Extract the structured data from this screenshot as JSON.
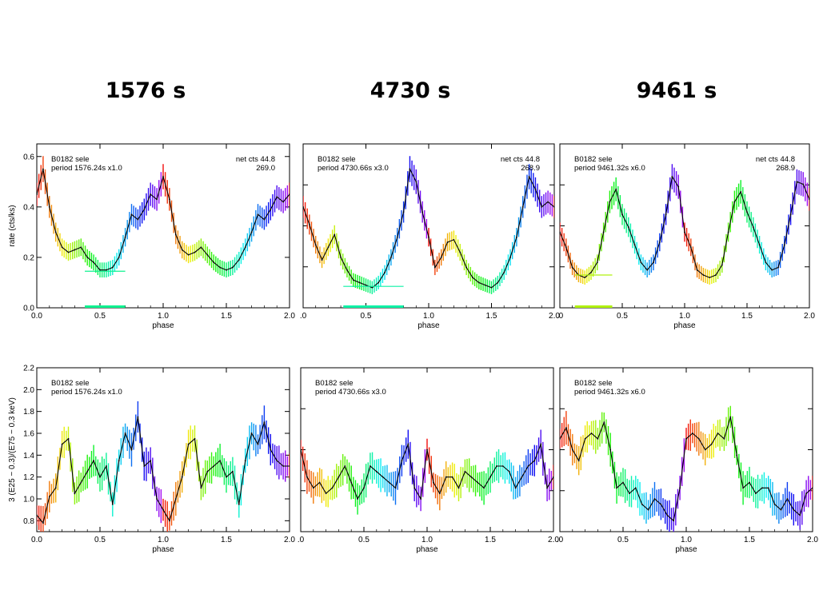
{
  "column_titles": [
    "1576 s",
    "4730 s",
    "9461 s"
  ],
  "chart_data": [
    {
      "type": "line",
      "panel": "top-left",
      "xlabel": "phase",
      "ylabel": "rate (cts/ks)",
      "xlim": [
        0,
        2
      ],
      "ylim": [
        0,
        0.65
      ],
      "xticks": [
        "0.0",
        "0.5",
        "1.0",
        "1.5",
        "2.0"
      ],
      "yticks": [
        "0.0",
        "0.2",
        "0.4",
        "0.6"
      ],
      "annotation_left": [
        "B0182  sele",
        "period  1576.24s  x1.0"
      ],
      "annotation_right": [
        "net  cts  44.8",
        "269.0"
      ],
      "x": [
        0.0,
        0.05,
        0.1,
        0.15,
        0.2,
        0.25,
        0.3,
        0.35,
        0.4,
        0.45,
        0.5,
        0.55,
        0.6,
        0.65,
        0.7,
        0.75,
        0.8,
        0.85,
        0.9,
        0.95,
        1.0,
        1.05,
        1.1,
        1.15,
        1.2,
        1.25,
        1.3,
        1.35,
        1.4,
        1.45,
        1.5,
        1.55,
        1.6,
        1.65,
        1.7,
        1.75,
        1.8,
        1.85,
        1.9,
        1.95,
        2.0
      ],
      "values": [
        0.45,
        0.55,
        0.4,
        0.3,
        0.24,
        0.22,
        0.23,
        0.24,
        0.2,
        0.18,
        0.15,
        0.15,
        0.16,
        0.2,
        0.28,
        0.37,
        0.35,
        0.39,
        0.45,
        0.43,
        0.52,
        0.43,
        0.29,
        0.23,
        0.21,
        0.22,
        0.24,
        0.21,
        0.18,
        0.16,
        0.15,
        0.16,
        0.19,
        0.24,
        0.3,
        0.37,
        0.35,
        0.39,
        0.44,
        0.42,
        0.45
      ],
      "horizontal_bar": {
        "x": [
          0.38,
          0.7
        ],
        "y": 0.145
      }
    },
    {
      "type": "line",
      "panel": "top-middle",
      "xlabel": "phase",
      "xlim": [
        0,
        2
      ],
      "ylim": [
        0,
        0.65
      ],
      "xticks": [
        ".0",
        "0.5",
        "1.0",
        "1.5",
        "2.0"
      ],
      "annotation_left": [
        "B0182  sele",
        "period  4730.66s  x3.0"
      ],
      "annotation_right": [
        "net  cts  44.8",
        "268.9"
      ],
      "x": [
        0.0,
        0.05,
        0.1,
        0.15,
        0.2,
        0.25,
        0.3,
        0.35,
        0.4,
        0.45,
        0.5,
        0.55,
        0.6,
        0.65,
        0.7,
        0.75,
        0.8,
        0.85,
        0.9,
        0.95,
        1.0,
        1.05,
        1.1,
        1.15,
        1.2,
        1.25,
        1.3,
        1.35,
        1.4,
        1.45,
        1.5,
        1.55,
        1.6,
        1.65,
        1.7,
        1.75,
        1.8,
        1.85,
        1.9,
        1.95,
        2.0
      ],
      "values": [
        0.4,
        0.33,
        0.25,
        0.19,
        0.24,
        0.29,
        0.2,
        0.15,
        0.11,
        0.1,
        0.09,
        0.08,
        0.1,
        0.14,
        0.2,
        0.28,
        0.38,
        0.55,
        0.5,
        0.38,
        0.28,
        0.16,
        0.2,
        0.26,
        0.27,
        0.22,
        0.16,
        0.12,
        0.1,
        0.09,
        0.08,
        0.1,
        0.14,
        0.2,
        0.28,
        0.4,
        0.52,
        0.47,
        0.4,
        0.42,
        0.4
      ],
      "horizontal_bar": {
        "x": [
          0.32,
          0.8
        ],
        "y": 0.085
      }
    },
    {
      "type": "line",
      "panel": "top-right",
      "xlabel": "phase",
      "xlim": [
        0,
        2
      ],
      "ylim": [
        0,
        0.65
      ],
      "xticks": [
        ".0",
        "0.5",
        "1.0",
        "1.5",
        "2.0"
      ],
      "annotation_left": [
        "B0182  sele",
        "period  9461.32s  x6.0"
      ],
      "annotation_right": [
        "net  cts  44.8",
        "268.9"
      ],
      "x": [
        0.0,
        0.05,
        0.1,
        0.15,
        0.2,
        0.25,
        0.3,
        0.35,
        0.4,
        0.45,
        0.5,
        0.55,
        0.6,
        0.65,
        0.7,
        0.75,
        0.8,
        0.85,
        0.9,
        0.95,
        1.0,
        1.05,
        1.1,
        1.15,
        1.2,
        1.25,
        1.3,
        1.35,
        1.4,
        1.45,
        1.5,
        1.55,
        1.6,
        1.65,
        1.7,
        1.75,
        1.8,
        1.85,
        1.9,
        1.95,
        2.0
      ],
      "values": [
        0.3,
        0.24,
        0.16,
        0.13,
        0.12,
        0.14,
        0.18,
        0.3,
        0.42,
        0.47,
        0.37,
        0.32,
        0.25,
        0.18,
        0.15,
        0.18,
        0.26,
        0.37,
        0.52,
        0.48,
        0.3,
        0.24,
        0.15,
        0.13,
        0.12,
        0.13,
        0.17,
        0.3,
        0.42,
        0.46,
        0.38,
        0.32,
        0.25,
        0.18,
        0.15,
        0.16,
        0.25,
        0.37,
        0.5,
        0.49,
        0.43
      ],
      "horizontal_bar": {
        "x": [
          0.12,
          0.42
        ],
        "y": 0.13
      }
    },
    {
      "type": "line",
      "panel": "bottom-left",
      "xlabel": "phase",
      "ylabel": "3 (E25 − 0.3)/(E75 − 0.3 keV)",
      "xlim": [
        0,
        2
      ],
      "ylim": [
        0.7,
        2.2
      ],
      "xticks": [
        "0.0",
        "0.5",
        "1.0",
        "1.5",
        "2.0"
      ],
      "yticks": [
        "0.8",
        "1.0",
        "1.2",
        "1.4",
        "1.6",
        "1.8",
        "2.0",
        "2.2"
      ],
      "annotation_left": [
        "B0182  sele",
        "period  1576.24s  x1.0"
      ],
      "x": [
        0.0,
        0.05,
        0.1,
        0.15,
        0.2,
        0.25,
        0.3,
        0.35,
        0.4,
        0.45,
        0.5,
        0.55,
        0.6,
        0.65,
        0.7,
        0.75,
        0.8,
        0.85,
        0.9,
        0.95,
        1.0,
        1.05,
        1.1,
        1.15,
        1.2,
        1.25,
        1.3,
        1.35,
        1.4,
        1.45,
        1.5,
        1.55,
        1.6,
        1.65,
        1.7,
        1.75,
        1.8,
        1.85,
        1.9,
        1.95,
        2.0
      ],
      "values": [
        0.85,
        0.78,
        1.02,
        1.1,
        1.5,
        1.55,
        1.05,
        1.15,
        1.25,
        1.35,
        1.2,
        1.3,
        0.95,
        1.35,
        1.6,
        1.45,
        1.75,
        1.3,
        1.35,
        1.0,
        0.9,
        0.8,
        1.0,
        1.2,
        1.5,
        1.55,
        1.1,
        1.25,
        1.3,
        1.35,
        1.2,
        1.25,
        0.95,
        1.35,
        1.6,
        1.5,
        1.7,
        1.45,
        1.35,
        1.3,
        1.3
      ]
    },
    {
      "type": "line",
      "panel": "bottom-middle",
      "xlabel": "phase",
      "xlim": [
        0,
        2
      ],
      "ylim": [
        0.7,
        2.2
      ],
      "xticks": [
        ".0",
        "0.5",
        "1.0",
        "1.5",
        "2.0"
      ],
      "annotation_left": [
        "B0182  sele",
        "period  4730.66s  x3.0"
      ],
      "x": [
        0.0,
        0.05,
        0.1,
        0.15,
        0.2,
        0.25,
        0.3,
        0.35,
        0.4,
        0.45,
        0.5,
        0.55,
        0.6,
        0.65,
        0.7,
        0.75,
        0.8,
        0.85,
        0.9,
        0.95,
        1.0,
        1.05,
        1.1,
        1.15,
        1.2,
        1.25,
        1.3,
        1.35,
        1.4,
        1.45,
        1.5,
        1.55,
        1.6,
        1.65,
        1.7,
        1.75,
        1.8,
        1.85,
        1.9,
        1.95,
        2.0
      ],
      "values": [
        1.45,
        1.2,
        1.1,
        1.15,
        1.05,
        1.1,
        1.2,
        1.3,
        1.15,
        1.0,
        1.1,
        1.3,
        1.25,
        1.2,
        1.15,
        1.1,
        1.35,
        1.5,
        1.1,
        1.0,
        1.45,
        1.15,
        1.05,
        1.2,
        1.2,
        1.1,
        1.25,
        1.2,
        1.15,
        1.1,
        1.2,
        1.3,
        1.3,
        1.25,
        1.1,
        1.2,
        1.3,
        1.35,
        1.5,
        1.1,
        1.2
      ]
    },
    {
      "type": "line",
      "panel": "bottom-right",
      "xlabel": "phase",
      "xlim": [
        0,
        2
      ],
      "ylim": [
        0.7,
        2.2
      ],
      "xticks": [
        ".0",
        "0.5",
        "1.0",
        "1.5",
        "2.0"
      ],
      "annotation_left": [
        "B0182  sele",
        "period  9461.32s  x6.0"
      ],
      "x": [
        0.0,
        0.05,
        0.1,
        0.15,
        0.2,
        0.25,
        0.3,
        0.35,
        0.4,
        0.45,
        0.5,
        0.55,
        0.6,
        0.65,
        0.7,
        0.75,
        0.8,
        0.85,
        0.9,
        0.95,
        1.0,
        1.05,
        1.1,
        1.15,
        1.2,
        1.25,
        1.3,
        1.35,
        1.4,
        1.45,
        1.5,
        1.55,
        1.6,
        1.65,
        1.7,
        1.75,
        1.8,
        1.85,
        1.9,
        1.95,
        2.0
      ],
      "values": [
        1.55,
        1.65,
        1.45,
        1.35,
        1.55,
        1.6,
        1.55,
        1.7,
        1.45,
        1.1,
        1.15,
        1.05,
        1.1,
        0.95,
        0.9,
        1.0,
        0.95,
        0.85,
        0.8,
        1.1,
        1.55,
        1.6,
        1.55,
        1.45,
        1.5,
        1.6,
        1.55,
        1.75,
        1.4,
        1.1,
        1.15,
        1.05,
        1.1,
        1.1,
        0.95,
        0.9,
        1.0,
        0.9,
        0.85,
        1.05,
        1.1
      ]
    }
  ]
}
